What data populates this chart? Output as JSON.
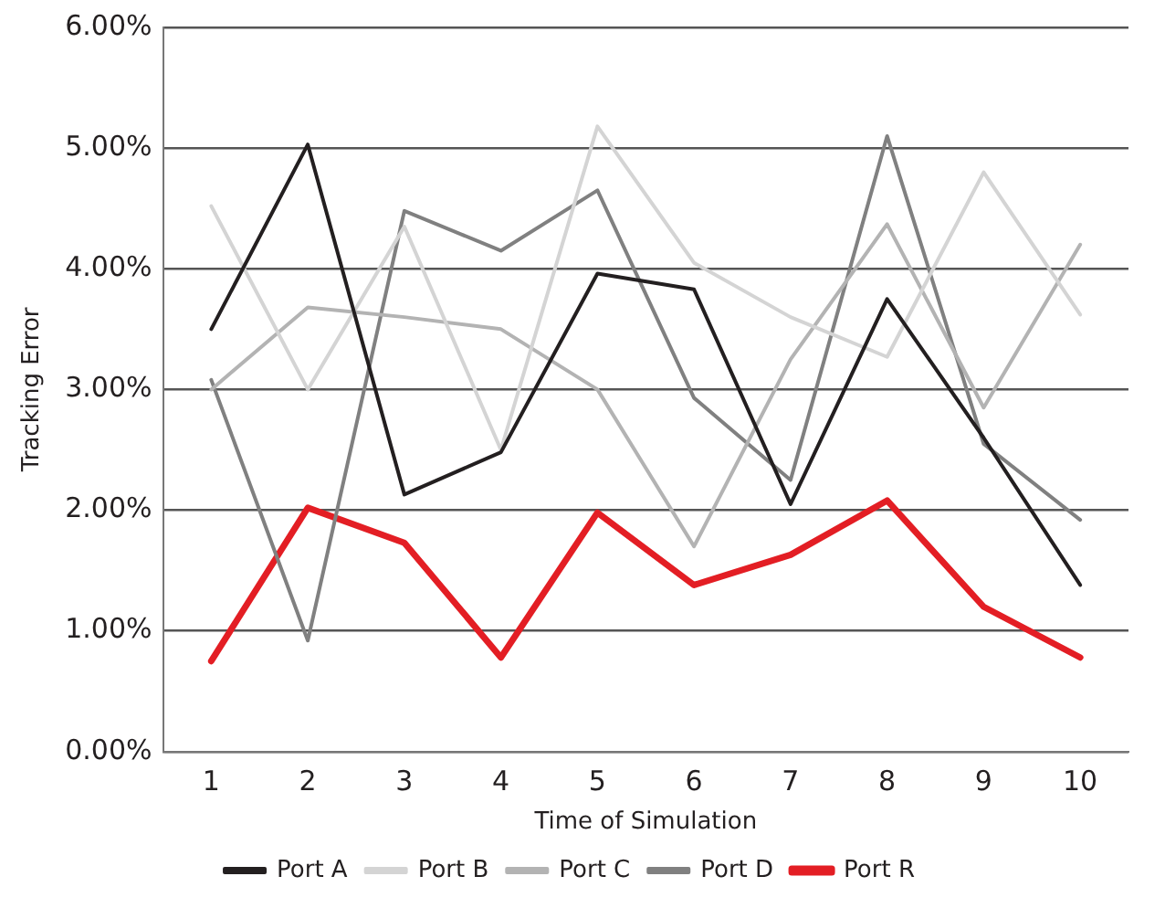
{
  "chart_data": {
    "type": "line",
    "xlabel": "Time of Simulation",
    "ylabel": "Tracking Error",
    "categories": [
      "1",
      "2",
      "3",
      "4",
      "5",
      "6",
      "7",
      "8",
      "9",
      "10"
    ],
    "series": [
      {
        "name": "Port A",
        "color": "#231f20",
        "values": [
          3.5,
          5.03,
          2.13,
          2.48,
          3.96,
          3.83,
          2.05,
          3.75,
          2.6,
          1.38
        ]
      },
      {
        "name": "Port B",
        "color": "#d4d4d4",
        "values": [
          4.52,
          3.0,
          4.35,
          2.5,
          5.18,
          4.05,
          3.6,
          3.27,
          4.8,
          3.62
        ]
      },
      {
        "name": "Port C",
        "color": "#b3b3b3",
        "values": [
          3.0,
          3.68,
          3.6,
          3.5,
          3.0,
          1.7,
          3.25,
          4.37,
          2.85,
          4.2
        ]
      },
      {
        "name": "Port D",
        "color": "#808080",
        "values": [
          3.08,
          0.92,
          4.48,
          4.15,
          4.65,
          2.93,
          2.25,
          5.1,
          2.55,
          1.92
        ]
      },
      {
        "name": "Port R",
        "color": "#e31e24",
        "values": [
          0.75,
          2.02,
          1.73,
          0.78,
          1.98,
          1.38,
          1.63,
          2.08,
          1.2,
          0.78
        ]
      }
    ],
    "ylim": [
      0,
      6
    ],
    "yticks": [
      {
        "value": 0,
        "label": "0.00%"
      },
      {
        "value": 1,
        "label": "1.00%"
      },
      {
        "value": 2,
        "label": "2.00%"
      },
      {
        "value": 3,
        "label": "3.00%"
      },
      {
        "value": 4,
        "label": "4.00%"
      },
      {
        "value": 5,
        "label": "5.00%"
      },
      {
        "value": 6,
        "label": "6.00%"
      }
    ],
    "grid": "y",
    "legend": "bottom",
    "marker": "none",
    "line_style": "solid"
  }
}
